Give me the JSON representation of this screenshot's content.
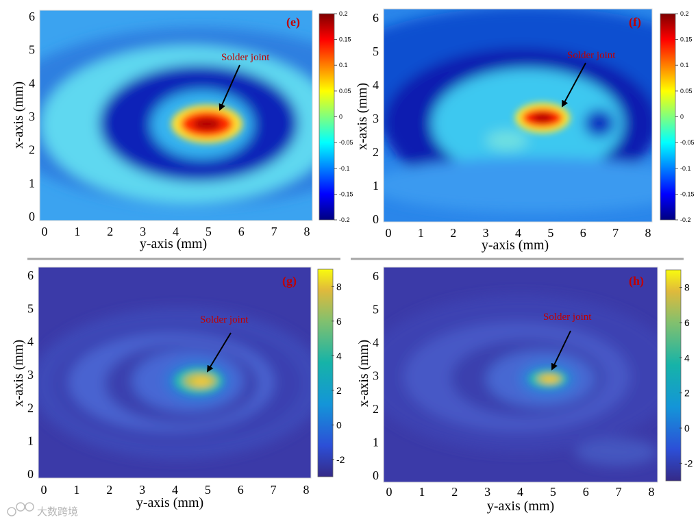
{
  "chart_data": [
    {
      "type": "heatmap",
      "panel_label": "(e)",
      "colormap": "jet",
      "xlabel": "y-axis  (mm)",
      "ylabel": "x-axis  (mm)",
      "xticks": [
        "0",
        "1",
        "2",
        "3",
        "4",
        "5",
        "6",
        "7",
        "8"
      ],
      "yticks": [
        "0",
        "1",
        "2",
        "3",
        "4",
        "5",
        "6"
      ],
      "xlim": [
        0,
        8.3
      ],
      "ylim": [
        0,
        6.2
      ],
      "colorbar_ticks": [
        "0.2",
        "0.15",
        "0.1",
        "0.05",
        "0",
        "-0.05",
        "-0.1",
        "-0.15",
        "-0.2"
      ],
      "colorbar_range": [
        -0.2,
        0.2
      ],
      "annotation": {
        "text": "Solder joint",
        "x": 5.0,
        "y": 2.7
      }
    },
    {
      "type": "heatmap",
      "panel_label": "(f)",
      "colormap": "jet",
      "xlabel": "y-axis  (mm)",
      "ylabel": "x-axis  (mm)",
      "xticks": [
        "0",
        "1",
        "2",
        "3",
        "4",
        "5",
        "6",
        "7",
        "8"
      ],
      "yticks": [
        "0",
        "1",
        "2",
        "3",
        "4",
        "5",
        "6"
      ],
      "xlim": [
        0,
        8.3
      ],
      "ylim": [
        0,
        6.2
      ],
      "colorbar_ticks": [
        "0.2",
        "0.15",
        "0.1",
        "0.05",
        "0",
        "-0.05",
        "-0.1",
        "-0.15",
        "-0.2"
      ],
      "colorbar_range": [
        -0.2,
        0.2
      ],
      "annotation": {
        "text": "Solder joint",
        "x": 4.8,
        "y": 2.9
      }
    },
    {
      "type": "heatmap",
      "panel_label": "(g)",
      "colormap": "parula",
      "xlabel": "y-axis  (mm)",
      "ylabel": "x-axis  (mm)",
      "xticks": [
        "0",
        "1",
        "2",
        "3",
        "4",
        "5",
        "6",
        "7",
        "8"
      ],
      "yticks": [
        "0",
        "1",
        "2",
        "3",
        "4",
        "5",
        "6"
      ],
      "xlim": [
        0,
        8.3
      ],
      "ylim": [
        0,
        6.2
      ],
      "colorbar_ticks": [
        "8",
        "6",
        "4",
        "2",
        "0",
        "-2"
      ],
      "colorbar_range": [
        -3,
        9
      ],
      "annotation": {
        "text": "Solder joint",
        "x": 4.9,
        "y": 2.7
      }
    },
    {
      "type": "heatmap",
      "panel_label": "(h)",
      "colormap": "parula",
      "xlabel": "y-axis  (mm)",
      "ylabel": "x-axis  (mm)",
      "xticks": [
        "0",
        "1",
        "2",
        "3",
        "4",
        "5",
        "6",
        "7",
        "8"
      ],
      "yticks": [
        "0",
        "1",
        "2",
        "3",
        "4",
        "5",
        "6"
      ],
      "xlim": [
        0,
        8.3
      ],
      "ylim": [
        0,
        6.2
      ],
      "colorbar_ticks": [
        "8",
        "6",
        "4",
        "2",
        "0",
        "-2"
      ],
      "colorbar_range": [
        -3,
        9
      ],
      "annotation": {
        "text": "Solder joint",
        "x": 4.8,
        "y": 2.8
      }
    }
  ],
  "watermark": "大数跨境"
}
